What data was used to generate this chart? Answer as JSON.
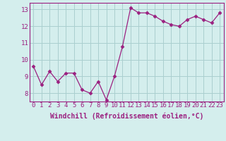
{
  "x": [
    0,
    1,
    2,
    3,
    4,
    5,
    6,
    7,
    8,
    9,
    10,
    11,
    12,
    13,
    14,
    15,
    16,
    17,
    18,
    19,
    20,
    21,
    22,
    23
  ],
  "y": [
    9.6,
    8.5,
    9.3,
    8.7,
    9.2,
    9.2,
    8.2,
    8.0,
    8.7,
    7.6,
    9.0,
    10.8,
    13.1,
    12.8,
    12.8,
    12.6,
    12.3,
    12.1,
    12.0,
    12.4,
    12.6,
    12.4,
    12.2,
    12.8
  ],
  "line_color": "#9b2080",
  "marker": "D",
  "markersize": 2.5,
  "linewidth": 0.9,
  "bg_color": "#d4eeed",
  "grid_color": "#aacfcf",
  "xlabel": "Windchill (Refroidissement éolien,°C)",
  "xlabel_fontsize": 7,
  "tick_fontsize": 6.5,
  "ytick_fontsize": 6.5,
  "ylim": [
    7.5,
    13.4
  ],
  "xlim": [
    -0.5,
    23.5
  ],
  "yticks": [
    8,
    9,
    10,
    11,
    12,
    13
  ],
  "xticks": [
    0,
    1,
    2,
    3,
    4,
    5,
    6,
    7,
    8,
    9,
    10,
    11,
    12,
    13,
    14,
    15,
    16,
    17,
    18,
    19,
    20,
    21,
    22,
    23
  ]
}
